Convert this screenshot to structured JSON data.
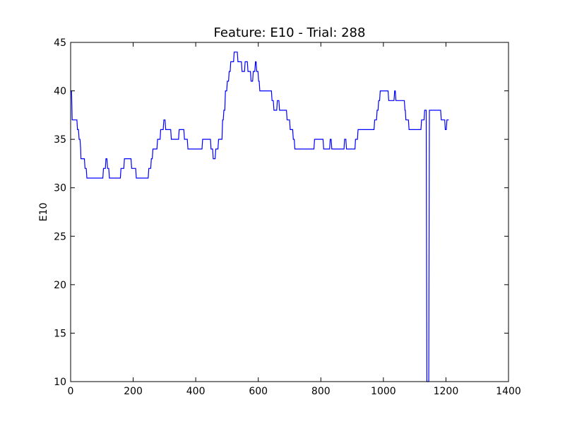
{
  "chart_data": {
    "type": "line",
    "title": "Feature: E10 - Trial: 288",
    "xlabel": "",
    "ylabel": "E10",
    "xlim": [
      0,
      1400
    ],
    "ylim": [
      10,
      45
    ],
    "x_ticks": [
      0,
      200,
      400,
      600,
      800,
      1000,
      1200,
      1400
    ],
    "y_ticks": [
      10,
      15,
      20,
      25,
      30,
      35,
      40,
      45
    ],
    "grid": false,
    "legend": "none",
    "series": [
      {
        "color": "#0000ff",
        "points": [
          [
            0,
            40
          ],
          [
            3,
            40
          ],
          [
            5,
            37
          ],
          [
            20,
            37
          ],
          [
            22,
            36
          ],
          [
            25,
            36
          ],
          [
            27,
            35
          ],
          [
            30,
            35
          ],
          [
            32,
            34
          ],
          [
            33,
            33
          ],
          [
            44,
            33
          ],
          [
            46,
            32
          ],
          [
            50,
            32
          ],
          [
            52,
            31
          ],
          [
            103,
            31
          ],
          [
            105,
            32
          ],
          [
            111,
            32
          ],
          [
            113,
            33
          ],
          [
            116,
            33
          ],
          [
            118,
            32
          ],
          [
            122,
            32
          ],
          [
            124,
            31
          ],
          [
            159,
            31
          ],
          [
            161,
            32
          ],
          [
            170,
            32
          ],
          [
            172,
            33
          ],
          [
            193,
            33
          ],
          [
            195,
            32
          ],
          [
            208,
            32
          ],
          [
            210,
            31
          ],
          [
            248,
            31
          ],
          [
            250,
            32
          ],
          [
            256,
            32
          ],
          [
            258,
            33
          ],
          [
            261,
            33
          ],
          [
            263,
            34
          ],
          [
            276,
            34
          ],
          [
            278,
            35
          ],
          [
            286,
            35
          ],
          [
            288,
            36
          ],
          [
            296,
            36
          ],
          [
            298,
            37
          ],
          [
            302,
            37
          ],
          [
            304,
            36
          ],
          [
            320,
            36
          ],
          [
            322,
            35
          ],
          [
            345,
            35
          ],
          [
            347,
            36
          ],
          [
            362,
            36
          ],
          [
            364,
            35
          ],
          [
            373,
            35
          ],
          [
            375,
            34
          ],
          [
            420,
            34
          ],
          [
            422,
            35
          ],
          [
            447,
            35
          ],
          [
            449,
            34
          ],
          [
            454,
            34
          ],
          [
            456,
            33
          ],
          [
            462,
            33
          ],
          [
            464,
            34
          ],
          [
            471,
            34
          ],
          [
            473,
            35
          ],
          [
            484,
            35
          ],
          [
            486,
            37
          ],
          [
            488,
            37
          ],
          [
            490,
            38
          ],
          [
            493,
            38
          ],
          [
            495,
            40
          ],
          [
            499,
            40
          ],
          [
            501,
            41
          ],
          [
            505,
            41
          ],
          [
            507,
            42
          ],
          [
            510,
            42
          ],
          [
            512,
            43
          ],
          [
            521,
            43
          ],
          [
            523,
            44
          ],
          [
            533,
            44
          ],
          [
            535,
            43
          ],
          [
            546,
            43
          ],
          [
            548,
            42
          ],
          [
            556,
            42
          ],
          [
            558,
            43
          ],
          [
            565,
            43
          ],
          [
            567,
            42
          ],
          [
            575,
            42
          ],
          [
            577,
            41
          ],
          [
            582,
            41
          ],
          [
            584,
            42
          ],
          [
            589,
            42
          ],
          [
            591,
            43
          ],
          [
            593,
            43
          ],
          [
            595,
            42
          ],
          [
            599,
            42
          ],
          [
            601,
            41
          ],
          [
            603,
            41
          ],
          [
            605,
            40
          ],
          [
            642,
            40
          ],
          [
            644,
            39
          ],
          [
            648,
            39
          ],
          [
            650,
            38
          ],
          [
            659,
            38
          ],
          [
            661,
            39
          ],
          [
            666,
            39
          ],
          [
            668,
            38
          ],
          [
            690,
            38
          ],
          [
            692,
            37
          ],
          [
            700,
            37
          ],
          [
            702,
            36
          ],
          [
            710,
            36
          ],
          [
            712,
            35
          ],
          [
            715,
            35
          ],
          [
            717,
            34
          ],
          [
            778,
            34
          ],
          [
            780,
            35
          ],
          [
            807,
            35
          ],
          [
            809,
            34
          ],
          [
            828,
            34
          ],
          [
            830,
            35
          ],
          [
            833,
            35
          ],
          [
            835,
            34
          ],
          [
            874,
            34
          ],
          [
            876,
            35
          ],
          [
            880,
            35
          ],
          [
            882,
            34
          ],
          [
            909,
            34
          ],
          [
            911,
            35
          ],
          [
            917,
            35
          ],
          [
            919,
            36
          ],
          [
            970,
            36
          ],
          [
            972,
            37
          ],
          [
            978,
            37
          ],
          [
            980,
            38
          ],
          [
            983,
            38
          ],
          [
            985,
            39
          ],
          [
            988,
            39
          ],
          [
            990,
            40
          ],
          [
            1015,
            40
          ],
          [
            1017,
            39
          ],
          [
            1034,
            39
          ],
          [
            1036,
            40
          ],
          [
            1038,
            40
          ],
          [
            1040,
            39
          ],
          [
            1067,
            39
          ],
          [
            1069,
            38
          ],
          [
            1070,
            38
          ],
          [
            1072,
            37
          ],
          [
            1080,
            37
          ],
          [
            1082,
            36
          ],
          [
            1120,
            36
          ],
          [
            1122,
            37
          ],
          [
            1130,
            37
          ],
          [
            1132,
            38
          ],
          [
            1137,
            38
          ],
          [
            1139,
            10
          ],
          [
            1145,
            10
          ],
          [
            1147,
            38
          ],
          [
            1183,
            38
          ],
          [
            1185,
            37
          ],
          [
            1196,
            37
          ],
          [
            1198,
            36
          ],
          [
            1201,
            36
          ],
          [
            1203,
            37
          ],
          [
            1209,
            37
          ]
        ]
      }
    ]
  }
}
